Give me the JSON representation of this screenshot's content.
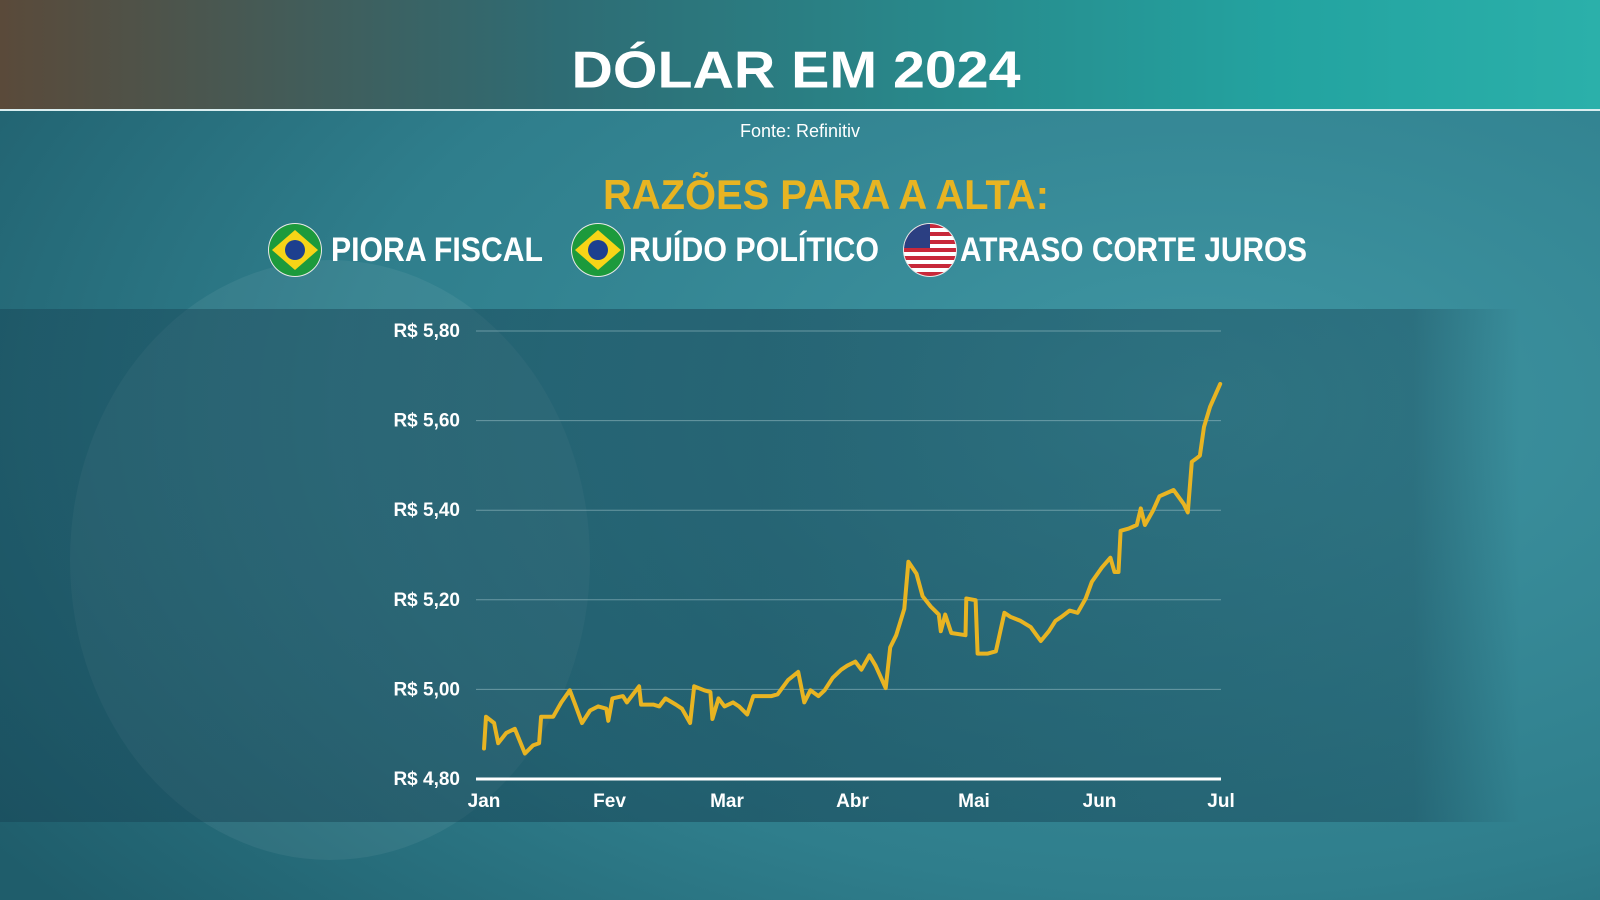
{
  "chart_data": {
    "type": "line",
    "title": "DÓLAR EM 2024",
    "subtitle": "Fonte: Refinitiv",
    "annotation": "RAZÕES PARA A ALTA:",
    "reasons": [
      "PIORA FISCAL",
      "RUÍDO POLÍTICO",
      "ATRASO CORTE JUROS"
    ],
    "color": "#e8b422",
    "x": [
      0,
      0.5,
      2.5,
      3.5,
      5.5,
      7.6,
      10.1,
      12.1,
      13.6,
      14.1,
      17.1,
      19.1,
      21.2,
      22.7,
      24.2,
      26.2,
      28.2,
      30.2,
      30.7,
      31.7,
      34.3,
      35.3,
      36.8,
      38.3,
      38.8,
      41.8,
      43.3,
      44.8,
      47.4,
      48.9,
      50.9,
      51.9,
      54.4,
      55.9,
      56.4,
      57.9,
      59.4,
      61.5,
      63.0,
      65.0,
      66.5,
      68.5,
      71.0,
      72.5,
      75.1,
      77.6,
      79.1,
      80.6,
      82.6,
      84.1,
      86.1,
      88.2,
      89.7,
      91.7,
      93.2,
      95.2,
      96.7,
      99.2,
      100.3,
      101.8,
      103.8,
      104.8,
      106.8,
      108.3,
      110.3,
      112.3,
      112.8,
      113.9,
      115.4,
      118.9,
      119.1,
      121.4,
      121.9,
      124.4,
      126.4,
      128.5,
      130.0,
      132.5,
      135.0,
      137.5,
      139.5,
      141.1,
      142.6,
      144.6,
      146.6,
      148.6,
      150.1,
      152.6,
      154.7,
      155.7,
      156.7,
      157.2,
      159.2,
      161.2,
      162.2,
      163.2,
      165.2,
      166.8,
      170.3,
      172.8,
      173.8,
      174.8,
      176.3,
      176.8,
      177.8,
      179.3,
      181.8
    ],
    "values": [
      4.868,
      4.939,
      4.925,
      4.88,
      4.903,
      4.912,
      4.857,
      4.875,
      4.88,
      4.939,
      4.939,
      4.971,
      4.998,
      4.962,
      4.925,
      4.953,
      4.962,
      4.957,
      4.93,
      4.98,
      4.985,
      4.971,
      4.989,
      5.007,
      4.966,
      4.966,
      4.962,
      4.98,
      4.966,
      4.957,
      4.925,
      5.007,
      4.998,
      4.994,
      4.934,
      4.98,
      4.962,
      4.971,
      4.962,
      4.944,
      4.985,
      4.985,
      4.985,
      4.989,
      5.021,
      5.039,
      4.971,
      4.998,
      4.985,
      4.998,
      5.026,
      5.044,
      5.053,
      5.062,
      5.044,
      5.076,
      5.053,
      5.003,
      5.094,
      5.121,
      5.18,
      5.285,
      5.258,
      5.208,
      5.185,
      5.167,
      5.13,
      5.167,
      5.126,
      5.121,
      5.203,
      5.199,
      5.08,
      5.08,
      5.085,
      5.171,
      5.162,
      5.153,
      5.139,
      5.108,
      5.13,
      5.153,
      5.162,
      5.176,
      5.171,
      5.203,
      5.24,
      5.272,
      5.294,
      5.262,
      5.262,
      5.354,
      5.359,
      5.367,
      5.404,
      5.367,
      5.399,
      5.431,
      5.445,
      5.414,
      5.395,
      5.508,
      5.518,
      5.522,
      5.586,
      5.631,
      5.682
    ],
    "xlim": [
      0,
      182
    ],
    "xticks": [
      {
        "value": 0,
        "label": "Jan"
      },
      {
        "value": 31,
        "label": "Fev"
      },
      {
        "value": 60,
        "label": "Mar"
      },
      {
        "value": 91,
        "label": "Abr"
      },
      {
        "value": 121,
        "label": "Mai"
      },
      {
        "value": 152,
        "label": "Jun"
      },
      {
        "value": 182,
        "label": "Jul"
      }
    ],
    "ylim": [
      4.8,
      5.8
    ],
    "yticks": [
      {
        "value": 4.8,
        "label": "R$ 4,80"
      },
      {
        "value": 5.0,
        "label": "R$ 5,00"
      },
      {
        "value": 5.2,
        "label": "R$ 5,20"
      },
      {
        "value": 5.4,
        "label": "R$ 5,40"
      },
      {
        "value": 5.6,
        "label": "R$ 5,60"
      },
      {
        "value": 5.8,
        "label": "R$ 5,80"
      }
    ],
    "grid": true
  }
}
